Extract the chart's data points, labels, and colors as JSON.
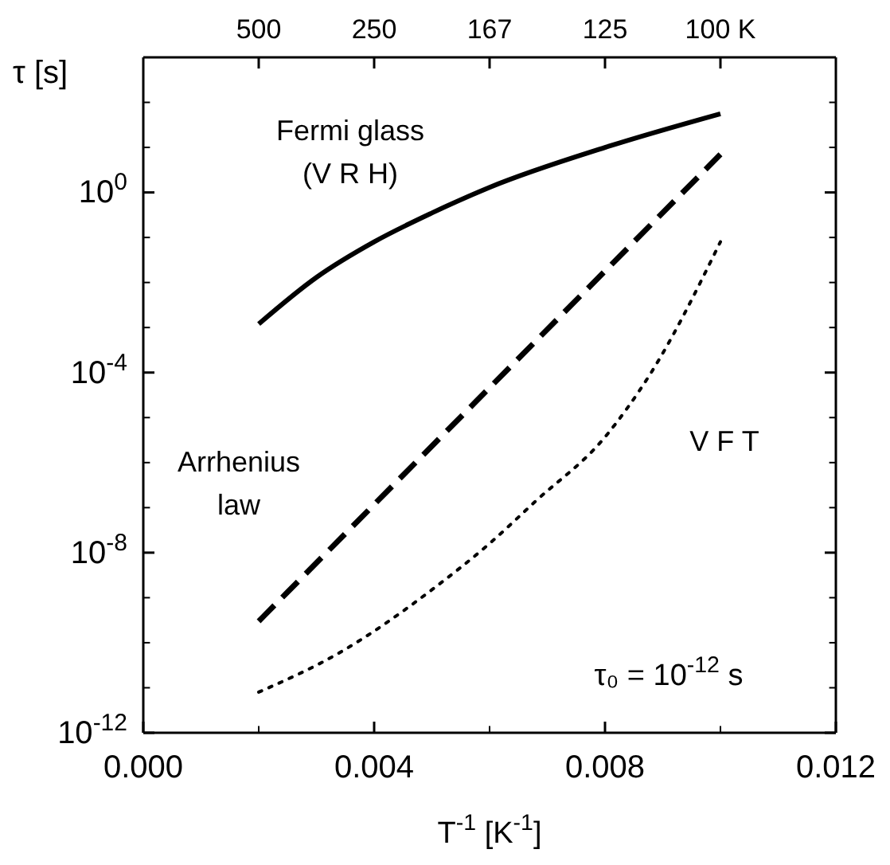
{
  "chart_data": {
    "type": "line",
    "xlabel": "T$^{-1}$  [K$^{-1}$]",
    "ylabel": "τ [s]",
    "log": "y",
    "xlim": [
      0,
      0.012
    ],
    "xticks": [
      {
        "value": 0,
        "label": "0.000"
      },
      {
        "value": 0.002,
        "label": null
      },
      {
        "value": 0.004,
        "label": "0.004"
      },
      {
        "value": 0.006,
        "label": null
      },
      {
        "value": 0.008,
        "label": "0.008"
      },
      {
        "value": 0.01,
        "label": null
      },
      {
        "value": 0.012,
        "label": "0.012"
      }
    ],
    "ylim": [
      1e-12,
      1000
    ],
    "yticks": [
      {
        "value": 1e-12,
        "label": "10$^{-12}$"
      },
      {
        "value": 1e-11,
        "label": null
      },
      {
        "value": 1e-10,
        "label": null
      },
      {
        "value": 1e-09,
        "label": null
      },
      {
        "value": 1e-08,
        "label": "10$^{-8}$"
      },
      {
        "value": 1e-07,
        "label": null
      },
      {
        "value": 1e-06,
        "label": null
      },
      {
        "value": 1e-05,
        "label": null
      },
      {
        "value": 0.0001,
        "label": "10$^{-4}$"
      },
      {
        "value": 0.001,
        "label": null
      },
      {
        "value": 0.01,
        "label": null
      },
      {
        "value": 0.1,
        "label": null
      },
      {
        "value": 1,
        "label": "10$^{0}$"
      },
      {
        "value": 10,
        "label": null
      },
      {
        "value": 100,
        "label": null
      },
      {
        "value": 1000,
        "label": null
      }
    ],
    "series": [
      {
        "name": "Fermi glass (V R H)",
        "color": "#000000",
        "line_style": "solid",
        "x": [
          0.002,
          0.003,
          0.004,
          0.005,
          0.006,
          0.008,
          0.01
        ],
        "values": [
          0.0012,
          0.013,
          0.08,
          0.35,
          1.3,
          10,
          56
        ]
      },
      {
        "name": "Arrhenius law",
        "color": "#000000",
        "line_style": "dashed",
        "x": [
          0.002,
          0.006,
          0.01
        ],
        "values": [
          3e-10,
          4.6e-05,
          7
        ]
      },
      {
        "name": "V F T",
        "color": "#000000",
        "line_style": "dotted",
        "x": [
          0.002,
          0.0034,
          0.005,
          0.006,
          0.0068,
          0.008,
          0.0088,
          0.01
        ],
        "values": [
          8e-12,
          6e-11,
          1.5e-09,
          1.6e-08,
          1.4e-07,
          3.7e-06,
          0.0001,
          0.08
        ]
      }
    ],
    "annotations": [
      "τ₀ = 10$^{-12}$ s",
      "500",
      "250",
      "167",
      "125",
      "100 K"
    ]
  }
}
